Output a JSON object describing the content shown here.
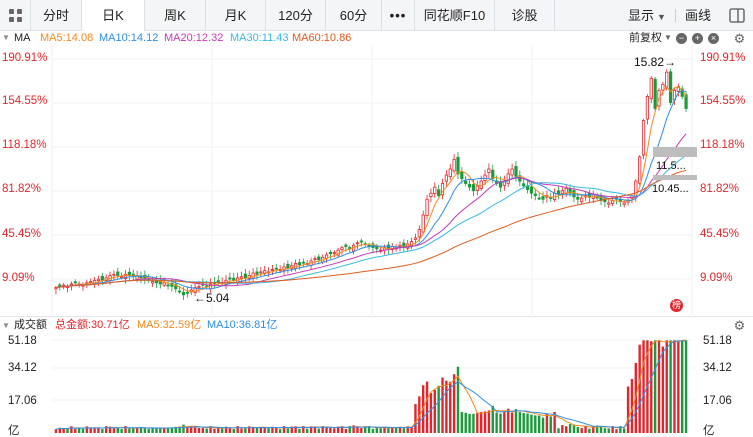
{
  "toolbar": {
    "tabs": [
      "分时",
      "日K",
      "周K",
      "月K",
      "120分",
      "60分"
    ],
    "more": "•••",
    "f10": "同花顺F10",
    "diagnose": "诊股",
    "display": "显示",
    "draw": "画线"
  },
  "ma_header": {
    "title": "MA",
    "ma5": "MA5:14.08",
    "ma10": "MA10:14.12",
    "ma20": "MA20:12.32",
    "ma30": "MA30:11.43",
    "ma60": "MA60:10.86",
    "adjust": "前复权",
    "ma5_color": "#f08a1c",
    "ma10_color": "#2c8ee6",
    "ma20_color": "#c53ab8",
    "ma30_color": "#38b8e0",
    "ma60_color": "#e25a1c"
  },
  "price_axis": {
    "labels": [
      "190.91%",
      "154.55%",
      "118.18%",
      "81.82%",
      "45.45%",
      "9.09%"
    ]
  },
  "annotations": {
    "high": "15.82→",
    "low": "←5.04",
    "tag1": "11.5...",
    "tag2": "10.45..."
  },
  "volume_header": {
    "title": "成交额",
    "total": "总金额:30.71亿",
    "ma5": "MA5:32.59亿",
    "ma10": "MA10:36.81亿",
    "total_color": "#e0262c",
    "ma5_color": "#f08a1c",
    "ma10_color": "#2c8ee6"
  },
  "volume_axis": {
    "labels": [
      "51.18",
      "34.12",
      "17.06",
      "亿"
    ]
  },
  "chart_data": {
    "type": "candlestick",
    "title": "",
    "y_axis_percent_ticks": [
      190.91,
      154.55,
      118.18,
      81.82,
      45.45,
      9.09
    ],
    "high_price": 15.82,
    "low_price": 5.04,
    "ma": {
      "MA5": 14.08,
      "MA10": 14.12,
      "MA20": 12.32,
      "MA30": 11.43,
      "MA60": 10.86
    },
    "volume_ticks": [
      51.18,
      34.12,
      17.06
    ],
    "volume_unit": "亿",
    "volume_total": 30.71,
    "volume_ma": {
      "MA5": 32.59,
      "MA10": 36.81
    },
    "price_series_percent": [
      2,
      3,
      4,
      3,
      5,
      6,
      5,
      4,
      6,
      7,
      8,
      9,
      8,
      10,
      12,
      13,
      12,
      11,
      13,
      12,
      11,
      12,
      10,
      9,
      8,
      7,
      6,
      5,
      6,
      4,
      3,
      1,
      -1,
      -4,
      -2,
      0,
      2,
      3,
      4,
      3,
      5,
      6,
      7,
      6,
      8,
      9,
      8,
      10,
      11,
      10,
      12,
      14,
      13,
      15,
      16,
      15,
      17,
      18,
      17,
      19,
      18,
      20,
      22,
      21,
      23,
      22,
      24,
      26,
      25,
      27,
      29,
      30,
      31,
      33,
      35,
      36,
      34,
      37,
      39,
      40,
      38,
      36,
      35,
      34,
      33,
      35,
      34,
      36,
      35,
      37,
      36,
      38,
      40,
      43,
      50,
      62,
      75,
      80,
      85,
      78,
      88,
      95,
      100,
      108,
      96,
      92,
      88,
      85,
      82,
      86,
      90,
      95,
      100,
      92,
      88,
      85,
      90,
      96,
      100,
      94,
      90,
      86,
      83,
      80,
      78,
      76,
      75,
      78,
      76,
      80,
      79,
      82,
      84,
      80,
      77,
      75,
      76,
      78,
      77,
      79,
      76,
      74,
      73,
      72,
      74,
      75,
      73,
      72,
      74,
      78,
      90,
      110,
      140,
      160,
      175,
      150,
      165,
      170,
      180,
      155,
      165,
      168,
      160,
      150
    ]
  }
}
